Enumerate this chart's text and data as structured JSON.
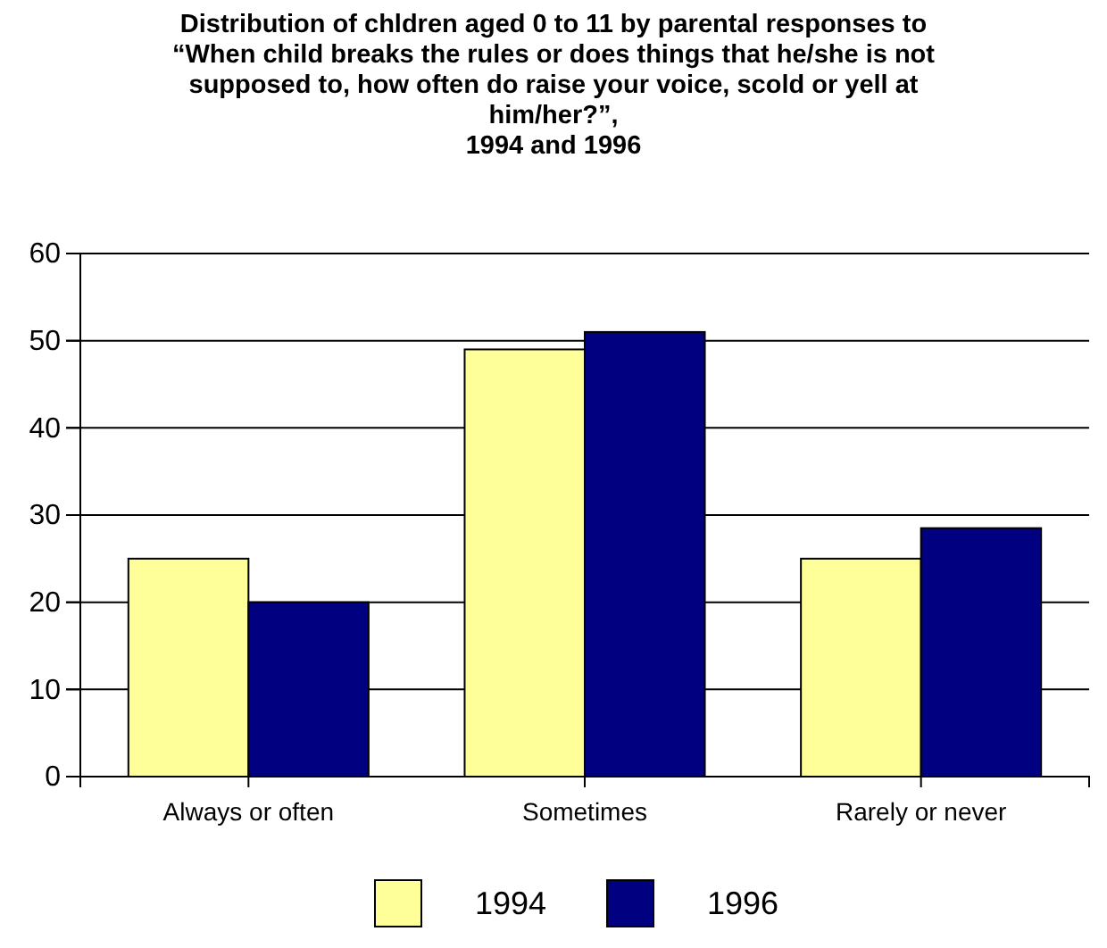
{
  "chart_data": {
    "type": "bar",
    "title": "Distribution of chldren aged 0 to 11 by parental responses to\n“When child breaks the rules or does things that he/she is not\nsupposed to, how often do raise your voice, scold or yell at\nhim/her?”,\n1994 and 1996",
    "categories": [
      "Always or often",
      "Sometimes",
      "Rarely or never"
    ],
    "series": [
      {
        "name": "1994",
        "color": "#ffff99",
        "values": [
          25,
          49,
          25
        ]
      },
      {
        "name": "1996",
        "color": "#000080",
        "values": [
          20,
          51,
          28.5
        ]
      }
    ],
    "ylim": [
      0,
      60
    ],
    "yticks": [
      0,
      10,
      20,
      30,
      40,
      50,
      60
    ],
    "grid": "y",
    "legend": "bottom"
  }
}
